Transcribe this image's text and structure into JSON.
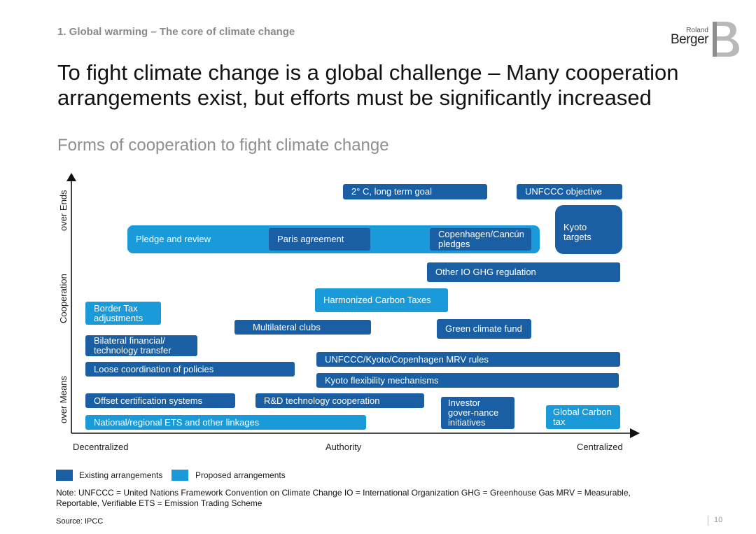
{
  "header": {
    "section": "1. Global warming – The core of climate change",
    "title": "To fight climate change is a global challenge – Many cooperation arrangements exist, but efforts must be significantly increased",
    "subtitle": "Forms of cooperation to fight climate change"
  },
  "logo": {
    "line1": "Roland",
    "line2": "Berger"
  },
  "axes": {
    "y_top": "over Ends",
    "y_mid": "Cooperation",
    "y_bottom": "over Means",
    "x_left": "Decentralized",
    "x_mid": "Authority",
    "x_right": "Centralized"
  },
  "boxes": {
    "two_degrees": "2° C, long term goal",
    "unfccc_objective": "UNFCCC objective",
    "kyoto_targets": "Kyoto targets",
    "pledge_review": "Pledge and review",
    "paris": "Paris agreement",
    "copenhagen": "Copenhagen/Cancún pledges",
    "other_io": "Other IO GHG regulation",
    "harmonized": "Harmonized Carbon Taxes",
    "border_tax": "Border Tax adjustments",
    "multilateral": "Multilateral clubs",
    "green_fund": "Green climate fund",
    "bilateral": "Bilateral financial/ technology transfer",
    "mrv": "UNFCCC/Kyoto/Copenhagen MRV rules",
    "loose": "Loose coordination of policies",
    "flexibility": "Kyoto flexibility mechanisms",
    "offset": "Offset certification systems",
    "rnd": "R&D technology cooperation",
    "investor": "Investor gover-nance initiatives",
    "global_tax": "Global Carbon tax",
    "ets": "National/regional ETS and other linkages"
  },
  "legend": {
    "existing": "Existing arrangements",
    "proposed": "Proposed arrangements"
  },
  "colors": {
    "existing": "#1a5fa3",
    "proposed": "#1a9ad9"
  },
  "note": "Note: UNFCCC = United Nations Framework Convention on Climate Change   IO = International Organization   GHG = Greenhouse Gas   MRV = Measurable, Reportable, Verifiable   ETS = Emission Trading Scheme",
  "source": "Source: IPCC",
  "page_number": "10"
}
